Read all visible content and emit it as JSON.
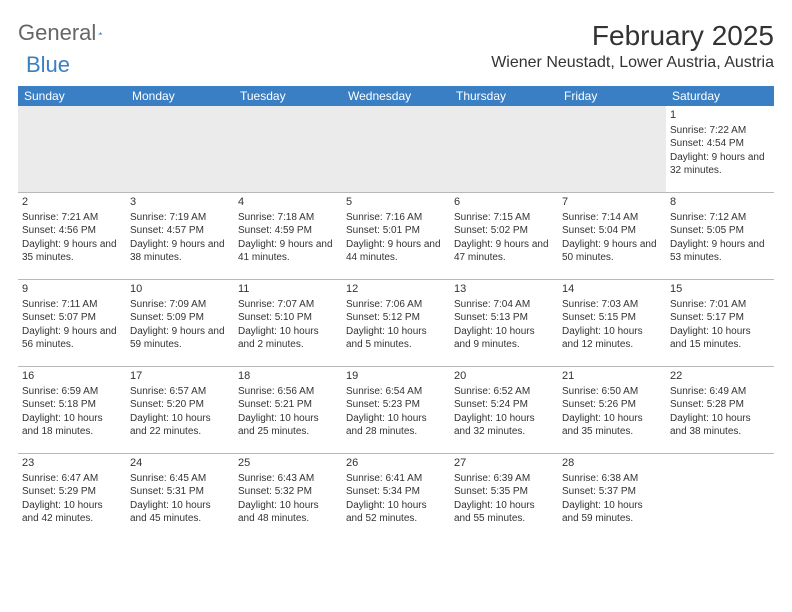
{
  "logo": {
    "text1": "General",
    "text2": "Blue"
  },
  "title": "February 2025",
  "location": "Wiener Neustadt, Lower Austria, Austria",
  "colors": {
    "header_bg": "#3a7fc4",
    "header_text": "#ffffff",
    "blank_bg": "#ebebeb",
    "border": "#b8b8b8"
  },
  "day_headers": [
    "Sunday",
    "Monday",
    "Tuesday",
    "Wednesday",
    "Thursday",
    "Friday",
    "Saturday"
  ],
  "weeks": [
    [
      null,
      null,
      null,
      null,
      null,
      null,
      {
        "n": "1",
        "sr": "Sunrise: 7:22 AM",
        "ss": "Sunset: 4:54 PM",
        "dl": "Daylight: 9 hours and 32 minutes."
      }
    ],
    [
      {
        "n": "2",
        "sr": "Sunrise: 7:21 AM",
        "ss": "Sunset: 4:56 PM",
        "dl": "Daylight: 9 hours and 35 minutes."
      },
      {
        "n": "3",
        "sr": "Sunrise: 7:19 AM",
        "ss": "Sunset: 4:57 PM",
        "dl": "Daylight: 9 hours and 38 minutes."
      },
      {
        "n": "4",
        "sr": "Sunrise: 7:18 AM",
        "ss": "Sunset: 4:59 PM",
        "dl": "Daylight: 9 hours and 41 minutes."
      },
      {
        "n": "5",
        "sr": "Sunrise: 7:16 AM",
        "ss": "Sunset: 5:01 PM",
        "dl": "Daylight: 9 hours and 44 minutes."
      },
      {
        "n": "6",
        "sr": "Sunrise: 7:15 AM",
        "ss": "Sunset: 5:02 PM",
        "dl": "Daylight: 9 hours and 47 minutes."
      },
      {
        "n": "7",
        "sr": "Sunrise: 7:14 AM",
        "ss": "Sunset: 5:04 PM",
        "dl": "Daylight: 9 hours and 50 minutes."
      },
      {
        "n": "8",
        "sr": "Sunrise: 7:12 AM",
        "ss": "Sunset: 5:05 PM",
        "dl": "Daylight: 9 hours and 53 minutes."
      }
    ],
    [
      {
        "n": "9",
        "sr": "Sunrise: 7:11 AM",
        "ss": "Sunset: 5:07 PM",
        "dl": "Daylight: 9 hours and 56 minutes."
      },
      {
        "n": "10",
        "sr": "Sunrise: 7:09 AM",
        "ss": "Sunset: 5:09 PM",
        "dl": "Daylight: 9 hours and 59 minutes."
      },
      {
        "n": "11",
        "sr": "Sunrise: 7:07 AM",
        "ss": "Sunset: 5:10 PM",
        "dl": "Daylight: 10 hours and 2 minutes."
      },
      {
        "n": "12",
        "sr": "Sunrise: 7:06 AM",
        "ss": "Sunset: 5:12 PM",
        "dl": "Daylight: 10 hours and 5 minutes."
      },
      {
        "n": "13",
        "sr": "Sunrise: 7:04 AM",
        "ss": "Sunset: 5:13 PM",
        "dl": "Daylight: 10 hours and 9 minutes."
      },
      {
        "n": "14",
        "sr": "Sunrise: 7:03 AM",
        "ss": "Sunset: 5:15 PM",
        "dl": "Daylight: 10 hours and 12 minutes."
      },
      {
        "n": "15",
        "sr": "Sunrise: 7:01 AM",
        "ss": "Sunset: 5:17 PM",
        "dl": "Daylight: 10 hours and 15 minutes."
      }
    ],
    [
      {
        "n": "16",
        "sr": "Sunrise: 6:59 AM",
        "ss": "Sunset: 5:18 PM",
        "dl": "Daylight: 10 hours and 18 minutes."
      },
      {
        "n": "17",
        "sr": "Sunrise: 6:57 AM",
        "ss": "Sunset: 5:20 PM",
        "dl": "Daylight: 10 hours and 22 minutes."
      },
      {
        "n": "18",
        "sr": "Sunrise: 6:56 AM",
        "ss": "Sunset: 5:21 PM",
        "dl": "Daylight: 10 hours and 25 minutes."
      },
      {
        "n": "19",
        "sr": "Sunrise: 6:54 AM",
        "ss": "Sunset: 5:23 PM",
        "dl": "Daylight: 10 hours and 28 minutes."
      },
      {
        "n": "20",
        "sr": "Sunrise: 6:52 AM",
        "ss": "Sunset: 5:24 PM",
        "dl": "Daylight: 10 hours and 32 minutes."
      },
      {
        "n": "21",
        "sr": "Sunrise: 6:50 AM",
        "ss": "Sunset: 5:26 PM",
        "dl": "Daylight: 10 hours and 35 minutes."
      },
      {
        "n": "22",
        "sr": "Sunrise: 6:49 AM",
        "ss": "Sunset: 5:28 PM",
        "dl": "Daylight: 10 hours and 38 minutes."
      }
    ],
    [
      {
        "n": "23",
        "sr": "Sunrise: 6:47 AM",
        "ss": "Sunset: 5:29 PM",
        "dl": "Daylight: 10 hours and 42 minutes."
      },
      {
        "n": "24",
        "sr": "Sunrise: 6:45 AM",
        "ss": "Sunset: 5:31 PM",
        "dl": "Daylight: 10 hours and 45 minutes."
      },
      {
        "n": "25",
        "sr": "Sunrise: 6:43 AM",
        "ss": "Sunset: 5:32 PM",
        "dl": "Daylight: 10 hours and 48 minutes."
      },
      {
        "n": "26",
        "sr": "Sunrise: 6:41 AM",
        "ss": "Sunset: 5:34 PM",
        "dl": "Daylight: 10 hours and 52 minutes."
      },
      {
        "n": "27",
        "sr": "Sunrise: 6:39 AM",
        "ss": "Sunset: 5:35 PM",
        "dl": "Daylight: 10 hours and 55 minutes."
      },
      {
        "n": "28",
        "sr": "Sunrise: 6:38 AM",
        "ss": "Sunset: 5:37 PM",
        "dl": "Daylight: 10 hours and 59 minutes."
      },
      null
    ]
  ]
}
